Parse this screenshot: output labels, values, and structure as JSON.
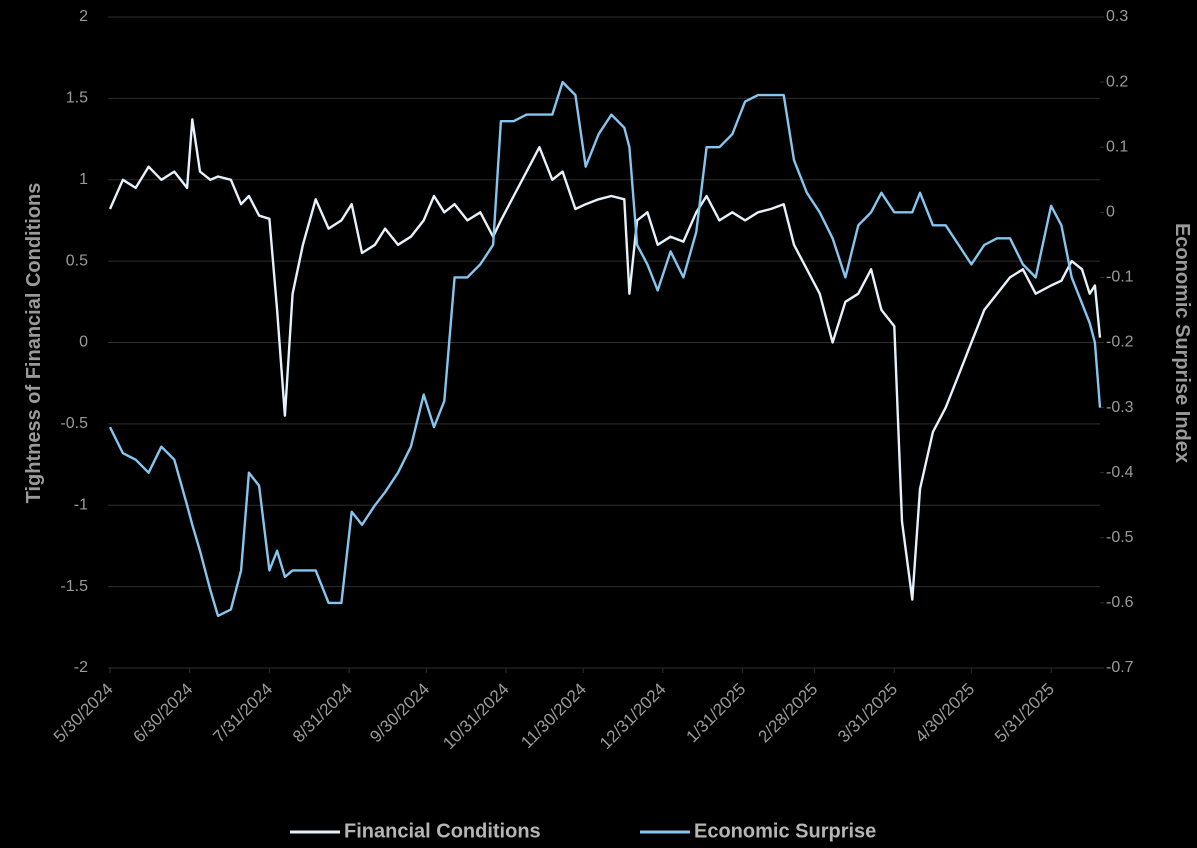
{
  "chart_data": {
    "type": "line",
    "y_label": "Tightness of Financial Conditions",
    "y2_label": "Economic Surprise Index",
    "x": [
      "5/30/2024",
      "6/4/2024",
      "6/9/2024",
      "6/14/2024",
      "6/19/2024",
      "6/24/2024",
      "6/29/2024",
      "7/1/2024",
      "7/4/2024",
      "7/8/2024",
      "7/11/2024",
      "7/16/2024",
      "7/20/2024",
      "7/23/2024",
      "7/27/2024",
      "7/31/2024",
      "8/3/2024",
      "8/6/2024",
      "8/9/2024",
      "8/13/2024",
      "8/18/2024",
      "8/23/2024",
      "8/28/2024",
      "9/1/2024",
      "9/5/2024",
      "9/10/2024",
      "9/14/2024",
      "9/19/2024",
      "9/24/2024",
      "9/29/2024",
      "10/3/2024",
      "10/7/2024",
      "10/11/2024",
      "10/16/2024",
      "10/21/2024",
      "10/26/2024",
      "10/29/2024",
      "11/3/2024",
      "11/8/2024",
      "11/13/2024",
      "11/18/2024",
      "11/22/2024",
      "11/27/2024",
      "12/1/2024",
      "12/6/2024",
      "12/11/2024",
      "12/16/2024",
      "12/18/2024",
      "12/21/2024",
      "12/25/2024",
      "12/29/2024",
      "1/3/2025",
      "1/8/2025",
      "1/13/2025",
      "1/17/2025",
      "1/22/2025",
      "1/27/2025",
      "2/1/2025",
      "2/6/2025",
      "2/11/2025",
      "2/16/2025",
      "2/20/2025",
      "2/25/2025",
      "3/2/2025",
      "3/7/2025",
      "3/12/2025",
      "3/17/2025",
      "3/22/2025",
      "3/26/2025",
      "3/31/2025",
      "4/3/2025",
      "4/7/2025",
      "4/10/2025",
      "4/15/2025",
      "4/20/2025",
      "4/25/2025",
      "4/30/2025",
      "5/5/2025",
      "5/10/2025",
      "5/15/2025",
      "5/20/2025",
      "5/25/2025",
      "5/31/2025",
      "6/4/2025",
      "6/8/2025",
      "6/12/2025",
      "6/15/2025",
      "6/17/2025",
      "6/19/2025"
    ],
    "series": [
      {
        "name": "Financial Conditions",
        "color": "#e6f1fa",
        "axis": "y",
        "values": [
          0.82,
          1.0,
          0.95,
          1.08,
          1.0,
          1.05,
          0.95,
          1.37,
          1.05,
          1.0,
          1.02,
          1.0,
          0.85,
          0.9,
          0.78,
          0.76,
          0.2,
          -0.45,
          0.3,
          0.6,
          0.88,
          0.7,
          0.75,
          0.85,
          0.55,
          0.6,
          0.7,
          0.6,
          0.65,
          0.75,
          0.9,
          0.8,
          0.85,
          0.75,
          0.8,
          0.65,
          0.75,
          0.9,
          1.05,
          1.2,
          1.0,
          1.05,
          0.82,
          0.85,
          0.88,
          0.9,
          0.88,
          0.3,
          0.75,
          0.8,
          0.6,
          0.65,
          0.62,
          0.8,
          0.9,
          0.75,
          0.8,
          0.75,
          0.8,
          0.82,
          0.85,
          0.6,
          0.45,
          0.3,
          0.0,
          0.25,
          0.3,
          0.45,
          0.2,
          0.1,
          -1.1,
          -1.58,
          -0.9,
          -0.55,
          -0.4,
          -0.2,
          0.0,
          0.2,
          0.3,
          0.4,
          0.45,
          0.3,
          0.35,
          0.38,
          0.5,
          0.45,
          0.3,
          0.35,
          0.03
        ]
      },
      {
        "name": "Economic Surprise",
        "color": "#86c5ee",
        "axis": "y2",
        "values": [
          -0.33,
          -0.37,
          -0.38,
          -0.4,
          -0.36,
          -0.38,
          -0.45,
          -0.48,
          -0.52,
          -0.58,
          -0.62,
          -0.61,
          -0.55,
          -0.4,
          -0.42,
          -0.55,
          -0.52,
          -0.56,
          -0.55,
          -0.55,
          -0.55,
          -0.6,
          -0.6,
          -0.46,
          -0.48,
          -0.45,
          -0.43,
          -0.4,
          -0.36,
          -0.28,
          -0.33,
          -0.29,
          -0.1,
          -0.1,
          -0.08,
          -0.05,
          0.14,
          0.14,
          0.15,
          0.15,
          0.15,
          0.2,
          0.18,
          0.07,
          0.12,
          0.15,
          0.13,
          0.1,
          -0.05,
          -0.08,
          -0.12,
          -0.06,
          -0.1,
          -0.03,
          0.1,
          0.1,
          0.12,
          0.17,
          0.18,
          0.18,
          0.18,
          0.08,
          0.03,
          0.0,
          -0.04,
          -0.1,
          -0.02,
          0.0,
          0.03,
          0.0,
          0.0,
          0.0,
          0.03,
          -0.02,
          -0.02,
          -0.05,
          -0.08,
          -0.05,
          -0.04,
          -0.04,
          -0.08,
          -0.1,
          0.01,
          -0.02,
          -0.1,
          -0.14,
          -0.17,
          -0.2,
          -0.3
        ]
      }
    ],
    "xlim": [
      "5/30/2024",
      "6/19/2025"
    ],
    "xticks": [
      "5/30/2024",
      "6/30/2024",
      "7/31/2024",
      "8/31/2024",
      "9/30/2024",
      "10/31/2024",
      "11/30/2024",
      "12/31/2024",
      "1/31/2025",
      "2/28/2025",
      "3/31/2025",
      "4/30/2025",
      "5/31/2025"
    ],
    "ylim": [
      -2,
      2
    ],
    "yticks": [
      -2,
      -1.5,
      -1,
      -0.5,
      0,
      0.5,
      1,
      1.5,
      2
    ],
    "y2lim": [
      -0.7,
      0.3
    ],
    "y2ticks": [
      -0.7,
      -0.6,
      -0.5,
      -0.4,
      -0.3,
      -0.2,
      -0.1,
      0,
      0.1,
      0.2,
      0.3
    ],
    "grid": true,
    "legend": "bottom"
  }
}
